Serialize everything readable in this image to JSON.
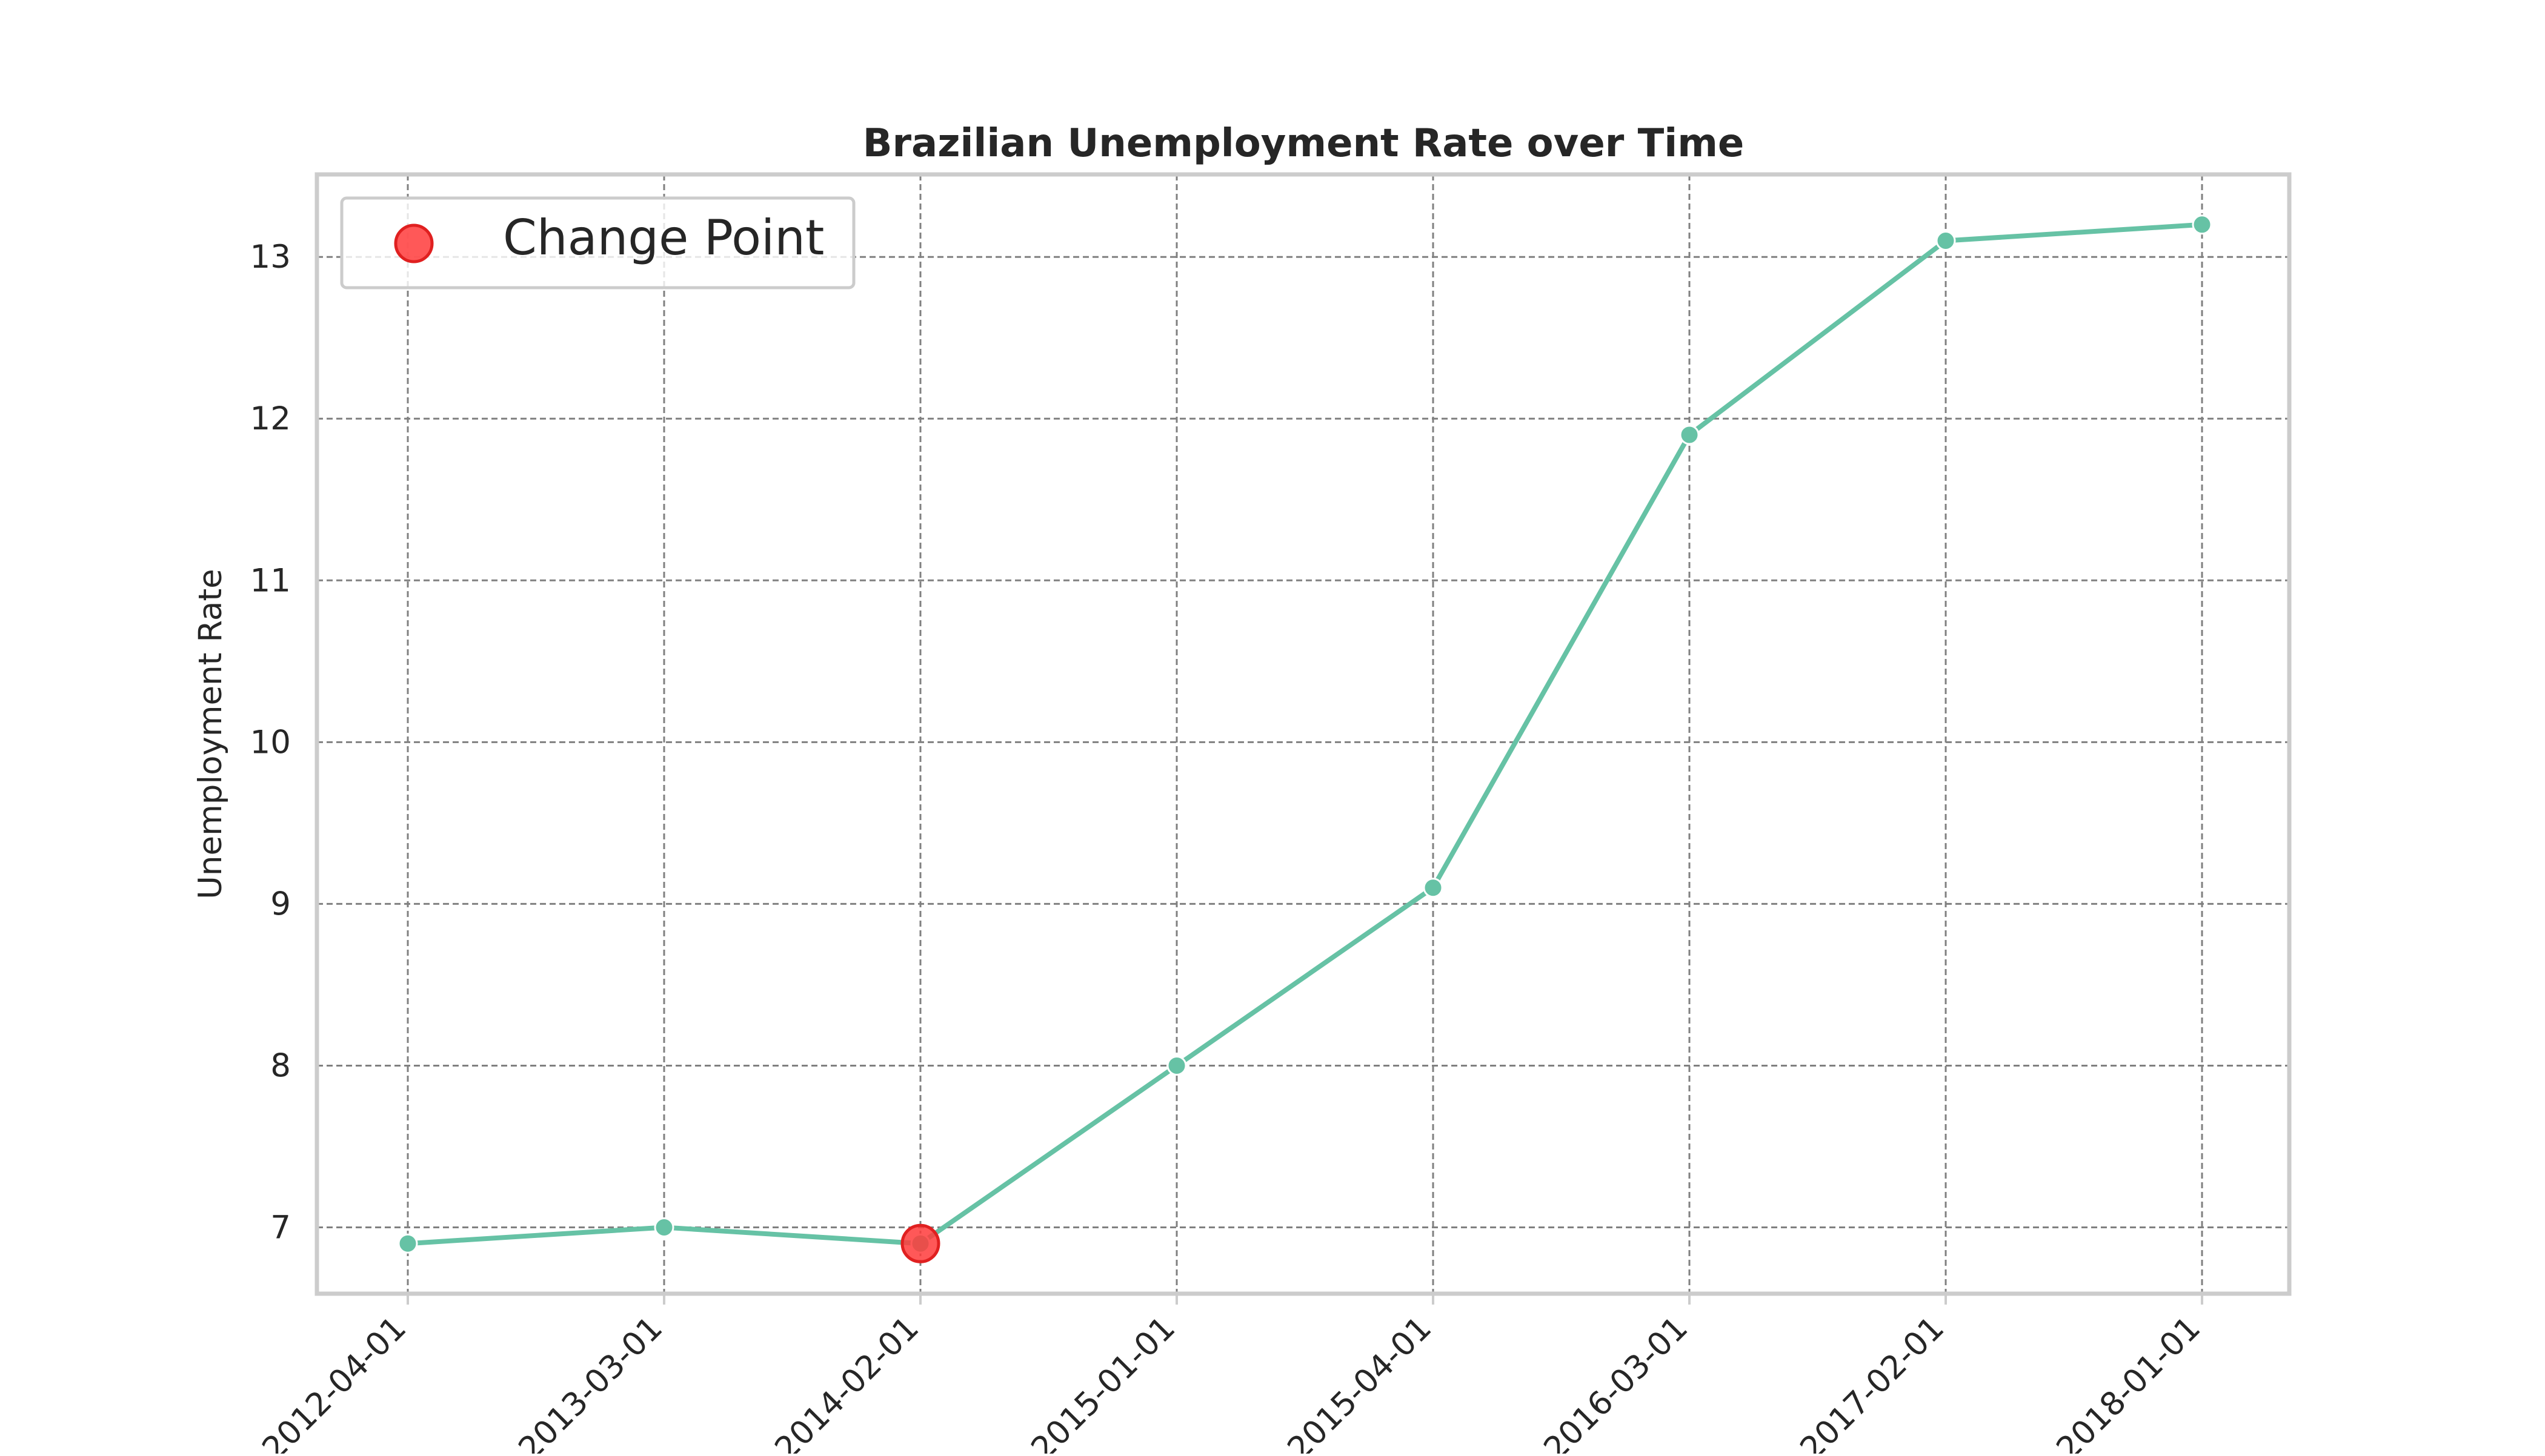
{
  "chart_data": {
    "type": "line",
    "title": "Brazilian Unemployment Rate over Time",
    "xlabel": "",
    "ylabel": "Unemployment Rate",
    "x": [
      "2012-04-01",
      "2013-03-01",
      "2014-02-01",
      "2015-01-01",
      "2015-04-01",
      "2016-03-01",
      "2017-02-01",
      "2018-01-01"
    ],
    "series": [
      {
        "values": [
          6.9,
          7.0,
          6.9,
          8.0,
          9.1,
          11.9,
          13.1,
          13.2
        ],
        "color": "#66c2a5"
      }
    ],
    "change_points": [
      {
        "x": "2014-02-01",
        "y": 6.9
      }
    ],
    "change_point_color": "#ff3b3b",
    "legend": {
      "entries": [
        "Change Point"
      ],
      "placement": "top-left"
    },
    "yticks": [
      7,
      8,
      9,
      10,
      11,
      12,
      13
    ],
    "ylim": [
      6.59,
      13.51
    ],
    "grid": true,
    "grid_style": "dashed"
  }
}
